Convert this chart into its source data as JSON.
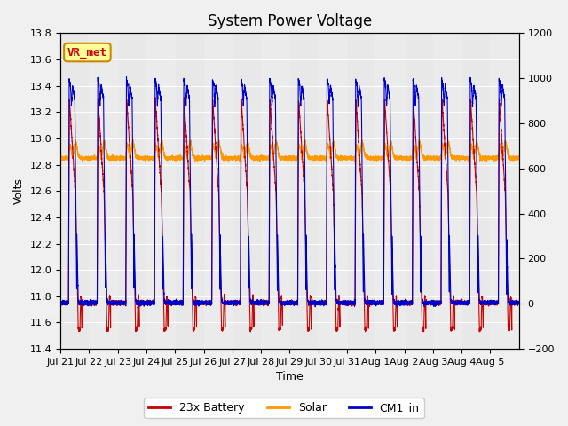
{
  "title": "System Power Voltage",
  "ylabel_left": "Volts",
  "xlabel": "Time",
  "ylim_left": [
    11.4,
    13.8
  ],
  "ylim_right": [
    -200,
    1200
  ],
  "yticks_left": [
    11.4,
    11.6,
    11.8,
    12.0,
    12.2,
    12.4,
    12.6,
    12.8,
    13.0,
    13.2,
    13.4,
    13.6,
    13.8
  ],
  "yticks_right": [
    -200,
    0,
    200,
    400,
    600,
    800,
    1000,
    1200
  ],
  "xtick_labels": [
    "Jul 21",
    "Jul 22",
    "Jul 23",
    "Jul 24",
    "Jul 25",
    "Jul 26",
    "Jul 27",
    "Jul 28",
    "Jul 29",
    "Jul 30",
    "Jul 31",
    "Aug 1",
    "Aug 2",
    "Aug 3",
    "Aug 4",
    "Aug 5"
  ],
  "num_days": 16,
  "plot_bg_color": "#e8e8e8",
  "fig_bg_color": "#f0f0f0",
  "line_colors": {
    "battery": "#cc0000",
    "solar": "#ff9900",
    "cm1": "#0000cc"
  },
  "annotation_text": "VR_met",
  "annotation_bg": "#ffff99",
  "annotation_border": "#cc8800",
  "legend_labels": [
    "23x Battery",
    "Solar",
    "CM1_in"
  ],
  "title_fontsize": 12,
  "axis_fontsize": 9,
  "tick_fontsize": 8,
  "legend_fontsize": 9,
  "annotation_fontsize": 9
}
